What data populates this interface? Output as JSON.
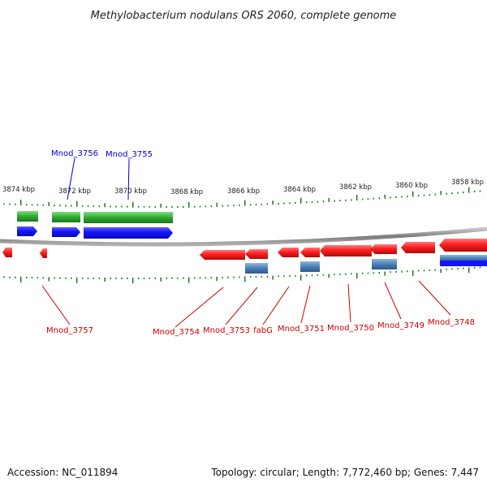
{
  "title": "Methylobacterium nodulans ORS 2060, complete genome",
  "footer": {
    "accession": "Accession: NC_011894",
    "topology": "Topology: circular; Length: 7,772,460 bp; Genes: 7,447"
  },
  "colors": {
    "forward_gene": "#1414ff",
    "forward_cds": "#3cb43c",
    "reverse_gene": "#ff1e1e",
    "reverse_cds": "#4a7fb5",
    "forward_label": "#0000cc",
    "reverse_label": "#cc0000",
    "tick": "#1a7a1a",
    "backbone": "#8a8a8a"
  },
  "ticks": [
    {
      "label": "3874 kbp"
    },
    {
      "label": "3872 kbp"
    },
    {
      "label": "3870 kbp"
    },
    {
      "label": "3868 kbp"
    },
    {
      "label": "3866 kbp"
    },
    {
      "label": "3864 kbp"
    },
    {
      "label": "3862 kbp"
    },
    {
      "label": "3860 kbp"
    },
    {
      "label": "3858 kbp"
    }
  ],
  "forward_labels": [
    "Mnod_3756",
    "Mnod_3755"
  ],
  "reverse_labels": [
    "Mnod_3757",
    "Mnod_3754",
    "Mnod_3753",
    "fabG",
    "Mnod_3751",
    "Mnod_3750",
    "Mnod_3749",
    "Mnod_3748"
  ]
}
